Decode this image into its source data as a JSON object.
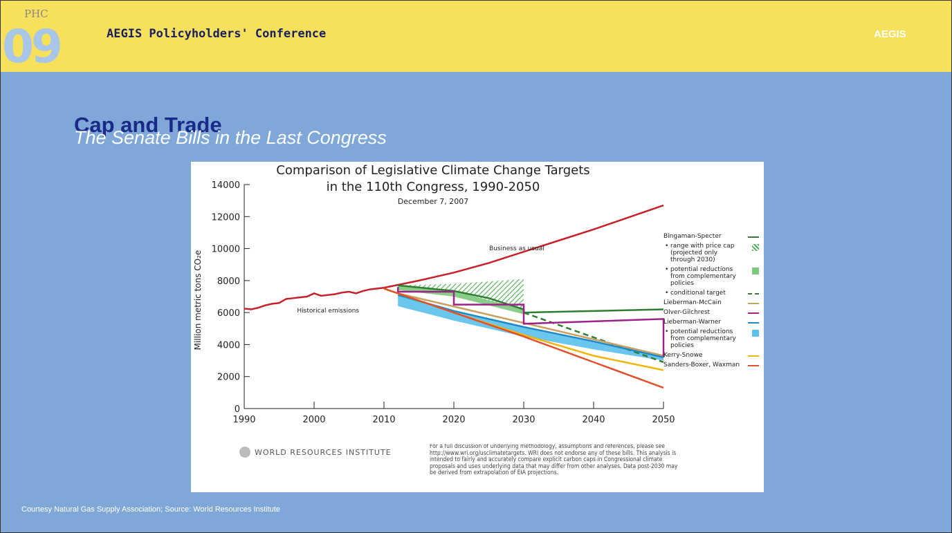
{
  "slide": {
    "logo_top": "PHC",
    "logo_bottom": "09",
    "header": "AEGIS Policyholders' Conference",
    "brand": "AEGIS",
    "title": "Cap and Trade",
    "subtitle": "The Senate Bills in the Last Congress",
    "footer": "Courtesy Natural Gas Supply Association; Source: World Resources Institute"
  },
  "chart_data": {
    "type": "line",
    "title": "Comparison of Legislative Climate Change Targets",
    "title_line2": "in the 110th Congress, 1990-2050",
    "subtitle": "December 7, 2007",
    "y_label": "Million metric tons CO₂e",
    "xlim": [
      1990,
      2050
    ],
    "xticks": [
      1990,
      2000,
      2010,
      2020,
      2030,
      2040,
      2050
    ],
    "ylim": [
      0,
      14000
    ],
    "yticks": [
      0,
      2000,
      4000,
      6000,
      8000,
      10000,
      12000,
      14000
    ],
    "emissions": {
      "color": "#c8202a",
      "x": [
        1990,
        1991,
        1992,
        1993,
        1994,
        1995,
        1996,
        1997,
        1998,
        1999,
        2000,
        2001,
        2002,
        2003,
        2004,
        2005,
        2006,
        2007,
        2008,
        2009,
        2010,
        2015,
        2020,
        2025,
        2030,
        2035,
        2040,
        2045,
        2050
      ],
      "values": [
        6250,
        6200,
        6300,
        6450,
        6550,
        6600,
        6850,
        6900,
        6950,
        7000,
        7200,
        7050,
        7100,
        7150,
        7250,
        7300,
        7200,
        7350,
        7450,
        7500,
        7550,
        8000,
        8500,
        9100,
        9800,
        10500,
        11200,
        11950,
        12700
      ]
    },
    "annotations": [
      {
        "text": "Historical emissions",
        "x": 2002,
        "y": 6000
      },
      {
        "text": "Business as usual",
        "x": 2029,
        "y": 9900
      }
    ],
    "series": [
      {
        "name": "Bingaman-Specter",
        "kind": "line",
        "color": "#2e7d32",
        "x": [
          2012,
          2020,
          2025,
          2030,
          2030,
          2050
        ],
        "values": [
          7700,
          7350,
          6900,
          6200,
          6000,
          6200
        ]
      },
      {
        "name": "range with price cap (projected only through 2030)",
        "kind": "area",
        "pattern": "hatch",
        "color": "#4caf50",
        "x": [
          2012,
          2020,
          2030
        ],
        "upper": [
          7700,
          7800,
          8100
        ],
        "lower": [
          7700,
          7350,
          6200
        ]
      },
      {
        "name": "potential reductions from complementary policies",
        "kind": "area",
        "color": "#7cc87c",
        "x": [
          2012,
          2020,
          2030
        ],
        "upper": [
          7700,
          7350,
          6200
        ],
        "lower": [
          7400,
          7000,
          5900
        ]
      },
      {
        "name": "conditional target",
        "kind": "dashed",
        "color": "#2e7d32",
        "x": [
          2030,
          2050
        ],
        "values": [
          6000,
          2900
        ]
      },
      {
        "name": "Lieberman-McCain",
        "kind": "line",
        "color": "#c8a060",
        "x": [
          2012,
          2050
        ],
        "values": [
          7200,
          3300
        ]
      },
      {
        "name": "Olver-Gilchrest",
        "kind": "line",
        "color": "#a0208a",
        "x": [
          2012,
          2012,
          2020,
          2020,
          2030,
          2030,
          2050,
          2050
        ],
        "values": [
          7600,
          7300,
          7300,
          6500,
          6500,
          5300,
          5600,
          3200
        ]
      },
      {
        "name": "Lieberman-Warner",
        "kind": "line",
        "color": "#1e88c8",
        "x": [
          2012,
          2020,
          2030,
          2040,
          2050
        ],
        "values": [
          7100,
          6100,
          5100,
          4200,
          3200
        ]
      },
      {
        "name": "potential reductions from complementary policies",
        "kind": "area",
        "color": "#5bc0eb",
        "x": [
          2012,
          2020,
          2030,
          2040,
          2050
        ],
        "upper": [
          7100,
          6100,
          5100,
          4200,
          3200
        ],
        "lower": [
          6400,
          5500,
          4500,
          3700,
          3000
        ]
      },
      {
        "name": "Kerry-Snowe",
        "kind": "line",
        "color": "#f0b400",
        "x": [
          2010,
          2020,
          2030,
          2040,
          2050
        ],
        "values": [
          7500,
          6000,
          4600,
          3300,
          2400
        ]
      },
      {
        "name": "Sanders-Boxer, Waxman",
        "kind": "line",
        "color": "#e0502a",
        "x": [
          2010,
          2020,
          2030,
          2040,
          2050
        ],
        "values": [
          7500,
          6000,
          4500,
          2900,
          1300
        ]
      }
    ],
    "source": "WORLD RESOURCES INSTITUTE",
    "note": "For a full discussion of underlying methodology, assumptions and references, please see http://www.wri.org/usclimatetargets. WRI does not endorse any of these bills. This analysis is intended to fairly and accurately compare explicit carbon caps in Congressional climate proposals and uses underlying data that may differ from other analyses. Data post-2030 may be derived from extrapolation of EIA projections."
  }
}
